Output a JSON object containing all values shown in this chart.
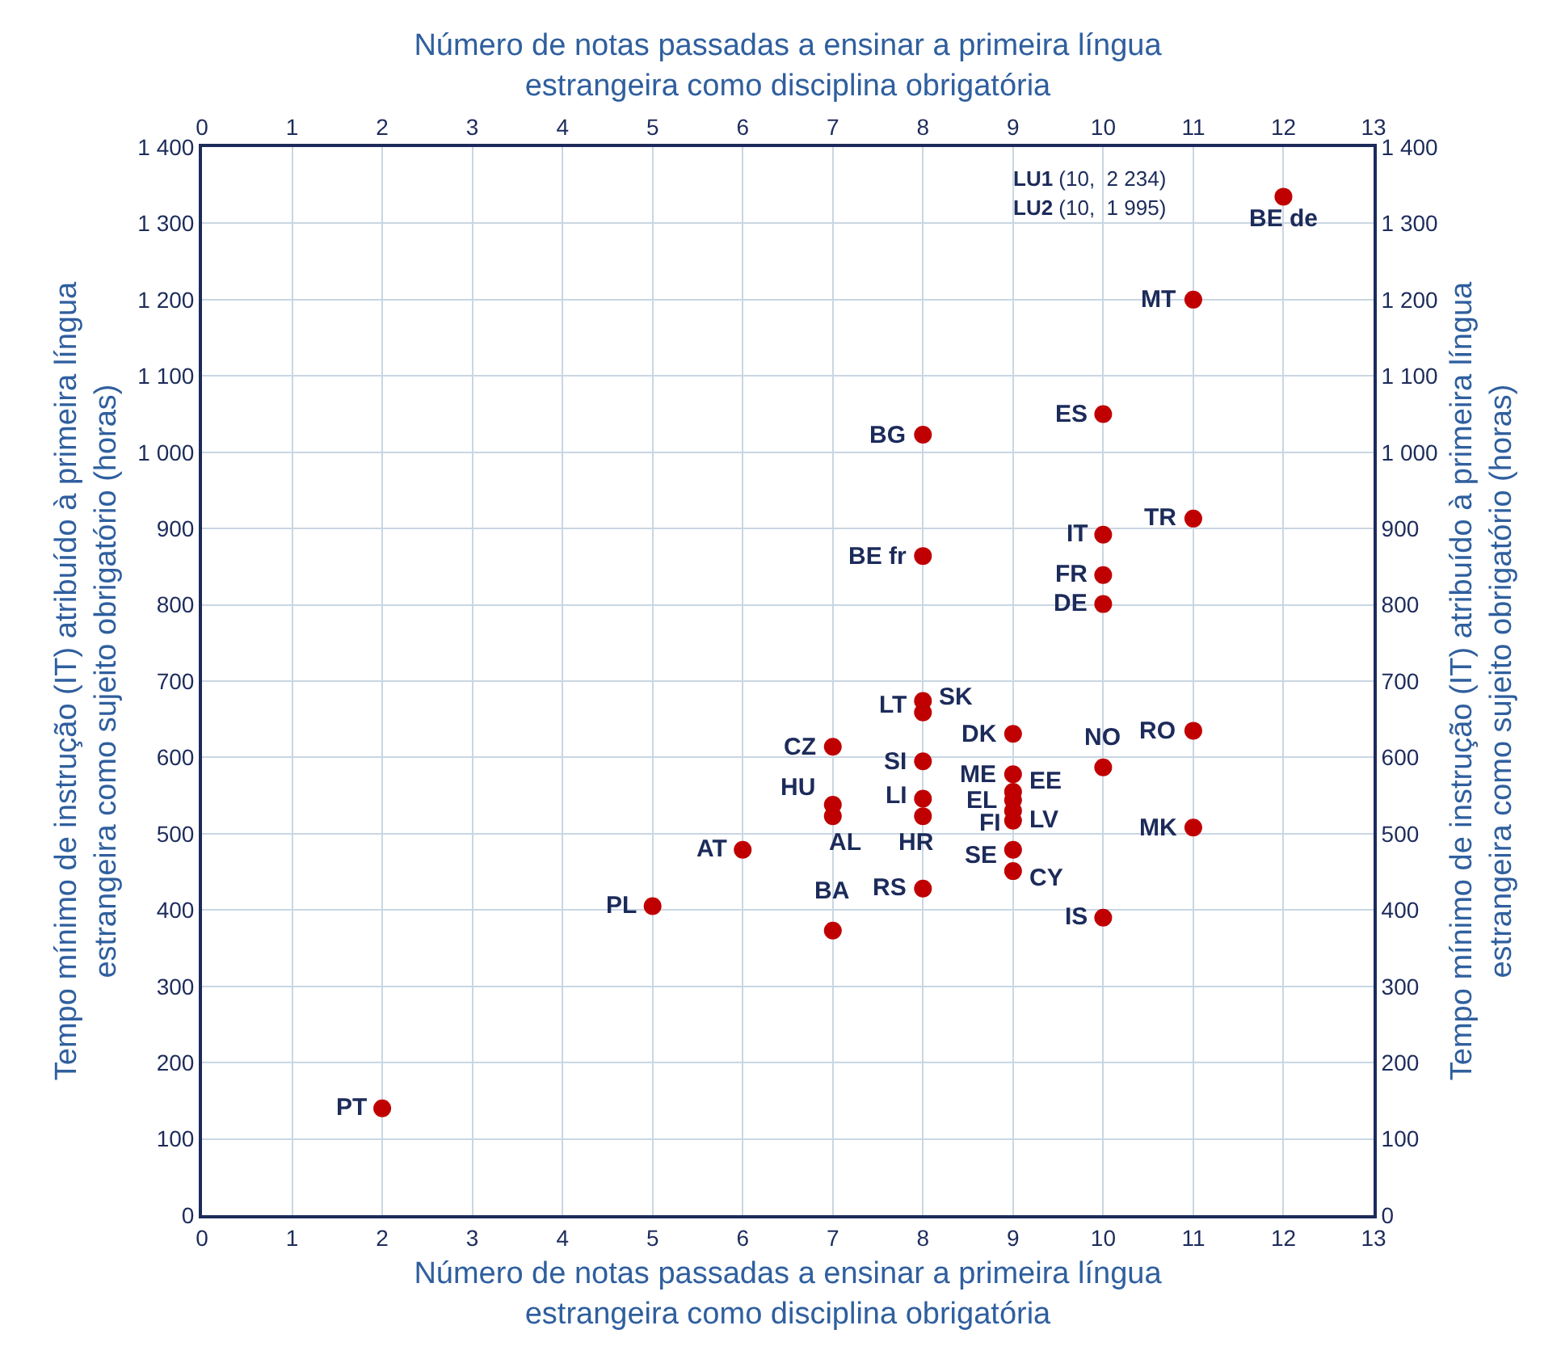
{
  "chart_data": {
    "type": "scatter",
    "xlabel": "Número de notas passadas a ensinar a primeira língua estrangeira como disciplina obrigatória",
    "x2label": "Número de notas passadas a ensinar a primeira língua estrangeira como disciplina obrigatória",
    "ylabel": "Tempo mínimo de instrução (IT) atribuído à primeira língua estrangeira como sujeito obrigatório (horas)",
    "y2label": "Tempo mínimo de instrução (IT) atribuído à primeira língua estrangeira como sujeito obrigatório (horas)",
    "x": [
      12,
      11,
      10,
      8,
      11,
      10,
      8,
      10,
      10,
      8,
      8,
      9,
      11,
      7,
      10,
      8,
      9,
      9,
      9,
      9,
      9,
      7,
      7,
      8,
      8,
      11,
      9,
      6,
      9,
      8,
      5,
      10,
      7,
      2
    ],
    "series": [
      {
        "color": "#c00000",
        "values": [
          1335,
          1200,
          1050,
          1023,
          913,
          892,
          864,
          839,
          801,
          674,
          659,
          631,
          635,
          614,
          587,
          595,
          578,
          555,
          544,
          530,
          517,
          538,
          523,
          546,
          523,
          508,
          479,
          479,
          451,
          428,
          405,
          390,
          373,
          140
        ]
      }
    ],
    "annotations": [
      {
        "text": "BE de",
        "x": 12,
        "y": 1335
      },
      {
        "text": "MT",
        "x": 11,
        "y": 1200
      },
      {
        "text": "ES",
        "x": 10,
        "y": 1050
      },
      {
        "text": "BG",
        "x": 8,
        "y": 1023
      },
      {
        "text": "TR",
        "x": 11,
        "y": 913
      },
      {
        "text": "IT",
        "x": 10,
        "y": 892
      },
      {
        "text": "BE fr",
        "x": 8,
        "y": 864
      },
      {
        "text": "FR",
        "x": 10,
        "y": 839
      },
      {
        "text": "DE",
        "x": 10,
        "y": 801
      },
      {
        "text": "SK",
        "x": 8,
        "y": 674
      },
      {
        "text": "LT",
        "x": 8,
        "y": 659
      },
      {
        "text": "DK",
        "x": 9,
        "y": 631
      },
      {
        "text": "RO",
        "x": 11,
        "y": 635
      },
      {
        "text": "CZ",
        "x": 7,
        "y": 614
      },
      {
        "text": "NO",
        "x": 10,
        "y": 587
      },
      {
        "text": "SI",
        "x": 8,
        "y": 595
      },
      {
        "text": "ME",
        "x": 9,
        "y": 578
      },
      {
        "text": "EE",
        "x": 9,
        "y": 555
      },
      {
        "text": "EL",
        "x": 9,
        "y": 544
      },
      {
        "text": "LV",
        "x": 9,
        "y": 530
      },
      {
        "text": "FI",
        "x": 9,
        "y": 517
      },
      {
        "text": "HU",
        "x": 7,
        "y": 538
      },
      {
        "text": "AL",
        "x": 7,
        "y": 523
      },
      {
        "text": "LI",
        "x": 8,
        "y": 546
      },
      {
        "text": "HR",
        "x": 8,
        "y": 523
      },
      {
        "text": "MK",
        "x": 11,
        "y": 508
      },
      {
        "text": "SE",
        "x": 9,
        "y": 479
      },
      {
        "text": "AT",
        "x": 6,
        "y": 479
      },
      {
        "text": "CY",
        "x": 9,
        "y": 451
      },
      {
        "text": "RS",
        "x": 8,
        "y": 428
      },
      {
        "text": "PL",
        "x": 5,
        "y": 405
      },
      {
        "text": "IS",
        "x": 10,
        "y": 390
      },
      {
        "text": "BA",
        "x": 7,
        "y": 373
      },
      {
        "text": "PT",
        "x": 2,
        "y": 140
      },
      "LU1 (10,  2 234)",
      "LU2 (10,  1 995)"
    ],
    "xlim": [
      0,
      13
    ],
    "xticks": [
      0,
      1,
      2,
      3,
      4,
      5,
      6,
      7,
      8,
      9,
      10,
      11,
      12,
      13
    ],
    "x2lim": [
      0,
      13
    ],
    "x2ticks": [
      0,
      1,
      2,
      3,
      4,
      5,
      6,
      7,
      8,
      9,
      10,
      11,
      12,
      13
    ],
    "ylim": [
      0,
      1400
    ],
    "yticks": [
      0,
      100,
      200,
      300,
      400,
      500,
      600,
      700,
      800,
      900,
      {
        "value": 1000,
        "label": "1 000"
      },
      {
        "value": 1100,
        "label": "1 100"
      },
      {
        "value": 1200,
        "label": "1 200"
      },
      {
        "value": 1300,
        "label": "1 300"
      },
      {
        "value": 1400,
        "label": "1 400"
      }
    ],
    "y2lim": [
      0,
      1400
    ],
    "y2ticks": [
      0,
      100,
      200,
      300,
      400,
      500,
      600,
      700,
      800,
      900,
      {
        "value": 1000,
        "label": "1 000"
      },
      {
        "value": 1100,
        "label": "1 100"
      },
      {
        "value": 1200,
        "label": "1 200"
      },
      {
        "value": 1300,
        "label": "1 300"
      },
      {
        "value": 1400,
        "label": "1 400"
      }
    ],
    "grid": true,
    "marker": "circle"
  }
}
